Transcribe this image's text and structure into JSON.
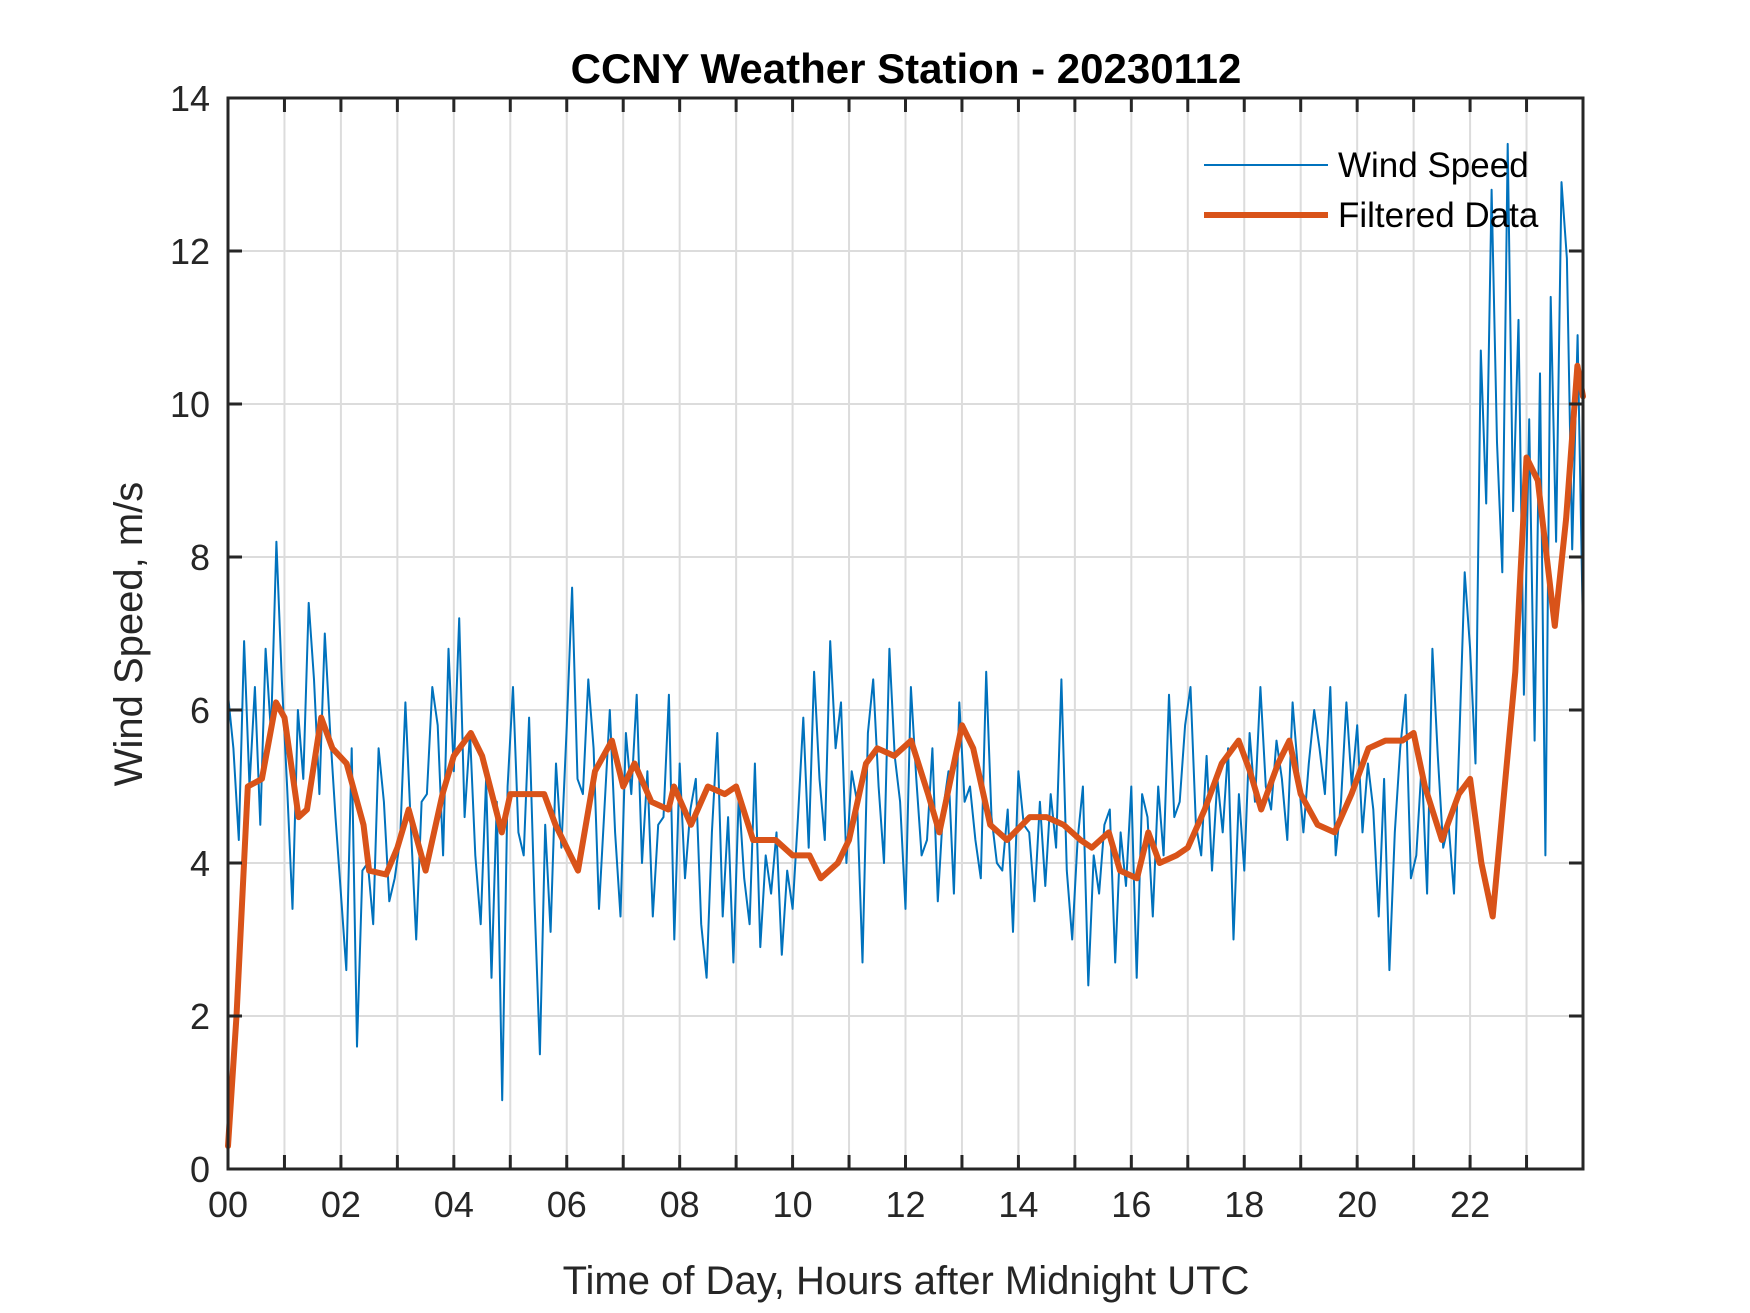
{
  "chart_data": {
    "type": "line",
    "title": "CCNY Weather Station - 20230112",
    "xlabel": "Time of Day, Hours after Midnight UTC",
    "ylabel": "Wind Speed, m/s",
    "xlim": [
      0,
      24
    ],
    "ylim": [
      0,
      14
    ],
    "x_ticks": [
      0,
      2,
      4,
      6,
      8,
      10,
      12,
      14,
      16,
      18,
      20,
      22
    ],
    "x_tick_labels": [
      "00",
      "02",
      "04",
      "06",
      "08",
      "10",
      "12",
      "14",
      "16",
      "18",
      "20",
      "22"
    ],
    "x_minor_grid_step_hours": 1,
    "y_ticks": [
      0,
      2,
      4,
      6,
      8,
      10,
      12,
      14
    ],
    "y_tick_labels": [
      "0",
      "2",
      "4",
      "6",
      "8",
      "10",
      "12",
      "14"
    ],
    "grid": true,
    "legend": {
      "placement": "top-right",
      "box": false
    },
    "series": [
      {
        "name": "Wind Speed",
        "color": "#0072BD",
        "style": "thin",
        "x_step_hours": 0.1,
        "values": [
          6.2,
          5.5,
          4.3,
          6.9,
          5.0,
          6.3,
          4.5,
          6.8,
          5.7,
          8.2,
          6.4,
          5.0,
          3.4,
          6.0,
          5.1,
          7.4,
          6.4,
          4.9,
          7.0,
          5.7,
          4.6,
          3.6,
          2.6,
          5.5,
          1.6,
          3.9,
          4.0,
          3.2,
          5.5,
          4.8,
          3.5,
          3.8,
          4.3,
          6.1,
          4.5,
          3.0,
          4.8,
          4.9,
          6.3,
          5.8,
          4.1,
          6.8,
          5.2,
          7.2,
          4.6,
          5.7,
          4.1,
          3.2,
          5.1,
          2.5,
          4.8,
          0.9,
          5.0,
          6.3,
          4.4,
          4.1,
          5.9,
          3.5,
          1.5,
          4.5,
          3.1,
          5.3,
          4.2,
          5.8,
          7.6,
          5.1,
          4.9,
          6.4,
          5.5,
          3.4,
          4.7,
          6.0,
          4.4,
          3.3,
          5.7,
          4.9,
          6.2,
          4.0,
          5.2,
          3.3,
          4.5,
          4.6,
          6.2,
          3.0,
          5.3,
          3.8,
          4.7,
          5.1,
          3.2,
          2.5,
          4.4,
          5.7,
          3.3,
          4.6,
          2.7,
          4.9,
          3.8,
          3.2,
          5.3,
          2.9,
          4.1,
          3.6,
          4.4,
          2.8,
          3.9,
          3.4,
          4.6,
          5.9,
          4.2,
          6.5,
          5.1,
          4.3,
          6.9,
          5.5,
          6.1,
          4.0,
          5.2,
          4.8,
          2.7,
          5.7,
          6.4,
          5.0,
          4.0,
          6.8,
          5.4,
          4.8,
          3.4,
          6.3,
          5.1,
          4.1,
          4.3,
          5.5,
          3.5,
          4.7,
          5.2,
          3.6,
          6.1,
          4.8,
          5.0,
          4.3,
          3.8,
          6.5,
          4.6,
          4.0,
          3.9,
          4.7,
          3.1,
          5.2,
          4.5,
          4.4,
          3.5,
          4.8,
          3.7,
          4.9,
          4.2,
          6.4,
          3.9,
          3.0,
          4.3,
          5.0,
          2.4,
          4.1,
          3.6,
          4.5,
          4.7,
          2.7,
          4.4,
          3.7,
          5.0,
          2.5,
          4.9,
          4.6,
          3.3,
          5.0,
          4.1,
          6.2,
          4.6,
          4.8,
          5.8,
          6.3,
          4.5,
          4.1,
          5.4,
          3.9,
          5.1,
          4.4,
          5.5,
          3.0,
          4.9,
          3.9,
          5.7,
          4.8,
          6.3,
          5.0,
          4.7,
          5.6,
          5.1,
          4.3,
          6.1,
          5.2,
          4.4,
          5.3,
          6.0,
          5.5,
          4.9,
          6.3,
          4.1,
          4.8,
          6.1,
          5.0,
          5.8,
          4.4,
          5.3,
          4.7,
          3.3,
          5.1,
          2.6,
          4.4,
          5.5,
          6.2,
          3.8,
          4.1,
          5.3,
          3.6,
          6.8,
          5.4,
          4.2,
          4.5,
          3.6,
          5.6,
          7.8,
          6.8,
          5.3,
          10.7,
          8.7,
          12.8,
          9.5,
          7.8,
          13.4,
          8.6,
          11.1,
          6.2,
          9.8,
          5.6,
          10.4,
          4.1,
          11.4,
          8.2,
          12.9,
          11.9,
          8.1,
          10.9,
          7.0
        ]
      },
      {
        "name": "Filtered Data",
        "color": "#D95319",
        "style": "thick",
        "points": [
          [
            0.0,
            0.3
          ],
          [
            0.15,
            2.0
          ],
          [
            0.35,
            5.0
          ],
          [
            0.6,
            5.1
          ],
          [
            0.85,
            6.1
          ],
          [
            1.0,
            5.9
          ],
          [
            1.25,
            4.6
          ],
          [
            1.4,
            4.7
          ],
          [
            1.65,
            5.9
          ],
          [
            1.85,
            5.5
          ],
          [
            2.1,
            5.3
          ],
          [
            2.4,
            4.5
          ],
          [
            2.5,
            3.9
          ],
          [
            2.8,
            3.85
          ],
          [
            3.0,
            4.2
          ],
          [
            3.2,
            4.7
          ],
          [
            3.5,
            3.9
          ],
          [
            3.8,
            4.9
          ],
          [
            4.0,
            5.4
          ],
          [
            4.3,
            5.7
          ],
          [
            4.5,
            5.4
          ],
          [
            4.85,
            4.4
          ],
          [
            5.0,
            4.9
          ],
          [
            5.3,
            4.9
          ],
          [
            5.6,
            4.9
          ],
          [
            5.8,
            4.5
          ],
          [
            6.2,
            3.9
          ],
          [
            6.5,
            5.2
          ],
          [
            6.8,
            5.6
          ],
          [
            7.0,
            5.0
          ],
          [
            7.2,
            5.3
          ],
          [
            7.5,
            4.8
          ],
          [
            7.8,
            4.7
          ],
          [
            7.9,
            5.0
          ],
          [
            8.2,
            4.5
          ],
          [
            8.5,
            5.0
          ],
          [
            8.8,
            4.9
          ],
          [
            9.0,
            5.0
          ],
          [
            9.3,
            4.3
          ],
          [
            9.7,
            4.3
          ],
          [
            10.0,
            4.1
          ],
          [
            10.3,
            4.1
          ],
          [
            10.5,
            3.8
          ],
          [
            10.8,
            4.0
          ],
          [
            11.0,
            4.3
          ],
          [
            11.3,
            5.3
          ],
          [
            11.5,
            5.5
          ],
          [
            11.8,
            5.4
          ],
          [
            12.1,
            5.6
          ],
          [
            12.4,
            4.9
          ],
          [
            12.6,
            4.4
          ],
          [
            13.0,
            5.8
          ],
          [
            13.2,
            5.5
          ],
          [
            13.5,
            4.5
          ],
          [
            13.8,
            4.3
          ],
          [
            14.2,
            4.6
          ],
          [
            14.5,
            4.6
          ],
          [
            14.8,
            4.5
          ],
          [
            15.1,
            4.3
          ],
          [
            15.3,
            4.2
          ],
          [
            15.6,
            4.4
          ],
          [
            15.8,
            3.9
          ],
          [
            16.1,
            3.8
          ],
          [
            16.3,
            4.4
          ],
          [
            16.5,
            4.0
          ],
          [
            16.8,
            4.1
          ],
          [
            17.0,
            4.2
          ],
          [
            17.3,
            4.7
          ],
          [
            17.6,
            5.3
          ],
          [
            17.9,
            5.6
          ],
          [
            18.1,
            5.2
          ],
          [
            18.3,
            4.7
          ],
          [
            18.6,
            5.3
          ],
          [
            18.8,
            5.6
          ],
          [
            19.0,
            4.9
          ],
          [
            19.3,
            4.5
          ],
          [
            19.6,
            4.4
          ],
          [
            19.9,
            4.9
          ],
          [
            20.2,
            5.5
          ],
          [
            20.5,
            5.6
          ],
          [
            20.8,
            5.6
          ],
          [
            21.0,
            5.7
          ],
          [
            21.2,
            5.0
          ],
          [
            21.5,
            4.3
          ],
          [
            21.8,
            4.9
          ],
          [
            22.0,
            5.1
          ],
          [
            22.2,
            4.0
          ],
          [
            22.4,
            3.3
          ],
          [
            22.8,
            6.5
          ],
          [
            23.0,
            9.3
          ],
          [
            23.2,
            9.0
          ],
          [
            23.5,
            7.1
          ],
          [
            23.7,
            8.5
          ],
          [
            23.9,
            10.5
          ],
          [
            24.0,
            10.1
          ]
        ]
      }
    ]
  }
}
